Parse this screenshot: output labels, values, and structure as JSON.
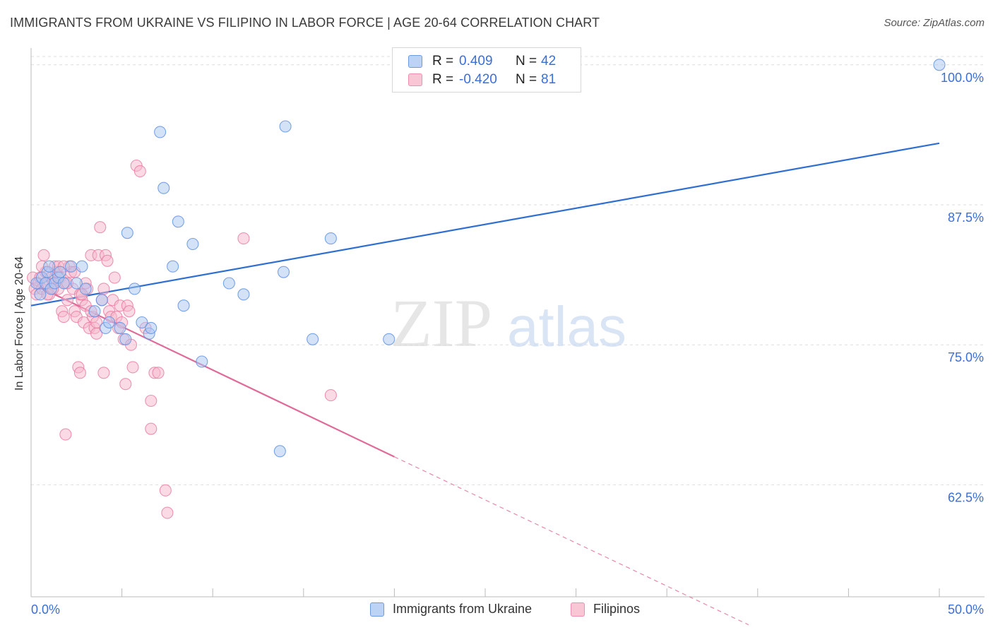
{
  "chart_data": {
    "type": "scatter",
    "title": "IMMIGRANTS FROM UKRAINE VS FILIPINO IN LABOR FORCE | AGE 20-64 CORRELATION CHART",
    "source": "Source: ZipAtlas.com",
    "xlabel": "",
    "ylabel": "In Labor Force | Age 20-64",
    "xlim": [
      0,
      50
    ],
    "ylim": [
      52.5,
      101.5
    ],
    "x_tick_labels": [
      "0.0%",
      "50.0%"
    ],
    "y_ticks": [
      62.5,
      75.0,
      87.5,
      100.0
    ],
    "y_tick_labels": [
      "62.5%",
      "75.0%",
      "87.5%",
      "100.0%"
    ],
    "grid": true,
    "watermark": "ZIPatlas",
    "legend": {
      "position": "top-center",
      "entries": [
        {
          "r_label": "R =",
          "r_value": "0.409",
          "n_label": "N =",
          "n_value": "42"
        },
        {
          "r_label": "R =",
          "r_value": "-0.420",
          "n_label": "N =",
          "n_value": "81"
        }
      ]
    },
    "series": [
      {
        "name": "Immigrants from Ukraine",
        "color": "#5b8fe0",
        "fill": "#a9c6f2",
        "trend": {
          "x0": 0,
          "y0": 78.5,
          "x1": 50,
          "y1": 93.0,
          "color": "#2e6fd0"
        },
        "points": [
          [
            0.3,
            80.5
          ],
          [
            0.5,
            79.5
          ],
          [
            0.6,
            81.0
          ],
          [
            0.8,
            80.5
          ],
          [
            0.9,
            81.5
          ],
          [
            1.0,
            82.0
          ],
          [
            1.1,
            80.0
          ],
          [
            1.3,
            80.5
          ],
          [
            1.5,
            81.0
          ],
          [
            1.6,
            81.5
          ],
          [
            1.8,
            80.5
          ],
          [
            2.2,
            82.0
          ],
          [
            2.5,
            80.5
          ],
          [
            2.8,
            82.0
          ],
          [
            3.0,
            80.0
          ],
          [
            3.5,
            78.0
          ],
          [
            3.9,
            79.0
          ],
          [
            4.1,
            76.5
          ],
          [
            4.3,
            77.0
          ],
          [
            4.9,
            76.5
          ],
          [
            5.2,
            75.5
          ],
          [
            5.3,
            85.0
          ],
          [
            5.7,
            80.0
          ],
          [
            6.1,
            77.0
          ],
          [
            6.5,
            76.0
          ],
          [
            6.6,
            76.5
          ],
          [
            7.1,
            94.0
          ],
          [
            7.3,
            89.0
          ],
          [
            7.8,
            82.0
          ],
          [
            8.1,
            86.0
          ],
          [
            8.4,
            78.5
          ],
          [
            8.9,
            84.0
          ],
          [
            9.4,
            73.5
          ],
          [
            10.9,
            80.5
          ],
          [
            11.7,
            79.5
          ],
          [
            13.7,
            65.5
          ],
          [
            13.9,
            81.5
          ],
          [
            14.0,
            94.5
          ],
          [
            15.5,
            75.5
          ],
          [
            16.5,
            84.5
          ],
          [
            19.7,
            75.5
          ],
          [
            50.0,
            100.0
          ]
        ]
      },
      {
        "name": "Filipinos",
        "color": "#e97aa3",
        "fill": "#f6b7cb",
        "trend": {
          "x0": 0,
          "y0": 80.5,
          "x1": 20,
          "y1": 65.0,
          "color": "#e06a98"
        },
        "trend_dashed": {
          "x0": 20,
          "y0": 65.0,
          "x1": 39.5,
          "y1": 50.0
        },
        "points": [
          [
            0.1,
            81.0
          ],
          [
            0.2,
            80.0
          ],
          [
            0.3,
            79.5
          ],
          [
            0.4,
            80.5
          ],
          [
            0.5,
            81.0
          ],
          [
            0.6,
            80.0
          ],
          [
            0.7,
            83.0
          ],
          [
            0.8,
            81.5
          ],
          [
            0.9,
            80.5
          ],
          [
            1.0,
            79.5
          ],
          [
            1.1,
            81.0
          ],
          [
            1.2,
            80.5
          ],
          [
            1.3,
            82.0
          ],
          [
            1.4,
            81.5
          ],
          [
            1.5,
            80.0
          ],
          [
            1.6,
            81.0
          ],
          [
            1.7,
            78.0
          ],
          [
            1.8,
            77.5
          ],
          [
            1.9,
            80.5
          ],
          [
            2.0,
            79.0
          ],
          [
            2.1,
            82.0
          ],
          [
            2.2,
            81.5
          ],
          [
            2.3,
            80.0
          ],
          [
            2.4,
            78.0
          ],
          [
            2.5,
            77.5
          ],
          [
            2.6,
            73.0
          ],
          [
            2.7,
            72.5
          ],
          [
            2.8,
            79.0
          ],
          [
            2.9,
            77.0
          ],
          [
            3.0,
            78.5
          ],
          [
            3.1,
            80.0
          ],
          [
            3.2,
            76.5
          ],
          [
            3.3,
            83.0
          ],
          [
            3.4,
            77.5
          ],
          [
            3.5,
            76.5
          ],
          [
            3.6,
            77.0
          ],
          [
            3.7,
            83.0
          ],
          [
            3.8,
            85.5
          ],
          [
            3.9,
            79.0
          ],
          [
            4.0,
            72.5
          ],
          [
            4.1,
            83.0
          ],
          [
            4.2,
            82.5
          ],
          [
            4.3,
            78.0
          ],
          [
            4.4,
            77.5
          ],
          [
            4.5,
            79.0
          ],
          [
            4.6,
            81.0
          ],
          [
            4.7,
            77.5
          ],
          [
            4.8,
            76.5
          ],
          [
            4.9,
            78.5
          ],
          [
            5.0,
            77.0
          ],
          [
            5.1,
            75.5
          ],
          [
            5.2,
            71.5
          ],
          [
            5.3,
            78.5
          ],
          [
            5.4,
            78.0
          ],
          [
            5.5,
            75.0
          ],
          [
            5.6,
            73.0
          ],
          [
            5.8,
            91.0
          ],
          [
            6.0,
            90.5
          ],
          [
            6.3,
            76.5
          ],
          [
            6.6,
            70.0
          ],
          [
            6.6,
            67.5
          ],
          [
            6.8,
            72.5
          ],
          [
            7.0,
            72.5
          ],
          [
            7.4,
            62.0
          ],
          [
            7.5,
            60.0
          ],
          [
            11.7,
            84.5
          ],
          [
            16.5,
            70.5
          ],
          [
            1.9,
            67.0
          ],
          [
            2.7,
            79.5
          ],
          [
            3.0,
            80.5
          ],
          [
            1.5,
            82.0
          ],
          [
            0.9,
            79.5
          ],
          [
            2.0,
            80.5
          ],
          [
            3.6,
            76.0
          ],
          [
            4.0,
            80.0
          ],
          [
            2.4,
            81.5
          ],
          [
            1.2,
            80.0
          ],
          [
            0.6,
            82.0
          ],
          [
            1.8,
            82.0
          ],
          [
            2.8,
            79.5
          ],
          [
            3.3,
            78.0
          ]
        ]
      }
    ]
  },
  "bottom_legend": [
    "Immigrants from Ukraine",
    "Filipinos"
  ]
}
